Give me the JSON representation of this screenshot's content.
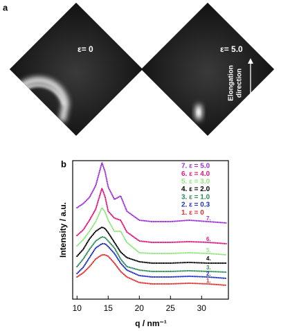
{
  "panel_a": {
    "label": "a",
    "images": [
      {
        "label": "ε= 0"
      },
      {
        "label": "ε= 5.0",
        "annotation": [
          "Elongation",
          "direction"
        ]
      }
    ]
  },
  "chart_data": {
    "type": "line",
    "panel_label": "b",
    "xlabel": "q / nm⁻¹",
    "ylabel": "Intensity / a.u.",
    "xlim": [
      9.3,
      34.3
    ],
    "xticks": [
      10,
      15,
      20,
      25,
      30
    ],
    "ylim": [
      0,
      100
    ],
    "x": [
      10,
      11,
      12,
      13,
      14,
      14.5,
      15,
      16,
      17,
      18,
      20,
      22,
      25,
      28,
      31,
      34
    ],
    "series": [
      {
        "name": "7. ε = 5.0",
        "label": "7.",
        "color": "#9b30d9",
        "values": [
          66,
          69,
          73.5,
          82,
          98.5,
          92,
          81,
          72,
          74.5,
          63.5,
          57,
          56,
          56,
          57,
          56,
          55
        ]
      },
      {
        "name": "6. ε = 4.0",
        "label": "6.",
        "color": "#e0177f",
        "values": [
          46,
          50,
          57,
          65,
          80,
          74,
          63.5,
          58.5,
          57,
          48.5,
          42,
          41,
          41,
          41.5,
          41,
          40
        ]
      },
      {
        "name": "5. ε = 3.0",
        "label": "5.",
        "color": "#8fe67f",
        "values": [
          38.5,
          43,
          49,
          56,
          66,
          63,
          57,
          49,
          49,
          41,
          33.5,
          33,
          33,
          33.5,
          33,
          32
        ]
      },
      {
        "name": "4. ε = 2.0",
        "label": "4.",
        "color": "#000000",
        "values": [
          31,
          36,
          43.5,
          49,
          52,
          51,
          48,
          41,
          34,
          30,
          27,
          26,
          26,
          26.5,
          26,
          26
        ]
      },
      {
        "name": "3. ε = 1.0",
        "label": "3.",
        "color": "#2e8b57",
        "values": [
          23.5,
          29,
          36,
          42,
          45,
          44.5,
          42,
          37,
          29,
          23.5,
          21,
          20,
          20,
          20.5,
          20,
          19.5
        ]
      },
      {
        "name": "2. ε = 0.3",
        "label": "2.",
        "color": "#1f2fc0",
        "values": [
          18.5,
          23,
          30,
          37,
          40,
          40,
          38,
          33,
          26,
          21,
          17,
          16,
          16,
          16.5,
          16,
          15
        ]
      },
      {
        "name": "1. ε = 0",
        "label": "1.",
        "color": "#e03030",
        "values": [
          16,
          19,
          23.5,
          29,
          32,
          32,
          31,
          26,
          20,
          16,
          12,
          11,
          11,
          11.5,
          11,
          10
        ]
      }
    ]
  }
}
